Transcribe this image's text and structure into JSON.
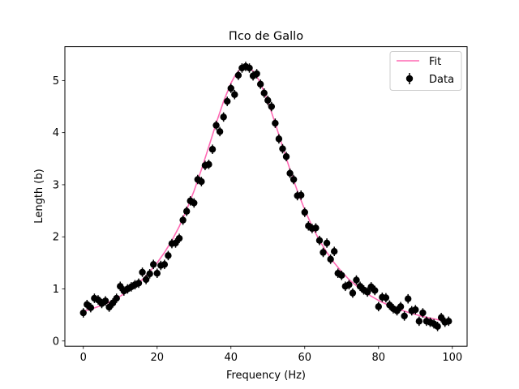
{
  "chart_data": {
    "type": "scatter",
    "title": "Пco de Gallo",
    "xlabel": "Frequency (Hz)",
    "ylabel": "Length (b)",
    "xlim": [
      -5,
      104
    ],
    "ylim": [
      -0.1,
      5.65
    ],
    "xticks": [
      0,
      20,
      40,
      60,
      80,
      100
    ],
    "xtick_labels": [
      "0",
      "20",
      "40",
      "60",
      "80",
      "100"
    ],
    "yticks": [
      0,
      1,
      2,
      3,
      4,
      5
    ],
    "ytick_labels": [
      "0",
      "1",
      "2",
      "3",
      "4",
      "5"
    ],
    "grid": false,
    "legend_position": "top-right",
    "series": [
      {
        "name": "Fit",
        "kind": "line",
        "color": "#ff69b4",
        "x": [
          0,
          2,
          4,
          6,
          8,
          10,
          12,
          14,
          16,
          18,
          20,
          22,
          24,
          26,
          28,
          30,
          32,
          34,
          36,
          38,
          40,
          41,
          42,
          43,
          44,
          45,
          46,
          47,
          48,
          50,
          52,
          54,
          56,
          58,
          60,
          62,
          64,
          66,
          68,
          70,
          72,
          74,
          76,
          78,
          80,
          82,
          84,
          86,
          88,
          90,
          92,
          94,
          96,
          98
        ],
        "y": [
          0.57,
          0.61,
          0.66,
          0.71,
          0.78,
          0.86,
          0.95,
          1.06,
          1.18,
          1.33,
          1.5,
          1.7,
          1.93,
          2.2,
          2.52,
          2.88,
          3.29,
          3.73,
          4.18,
          4.6,
          4.95,
          5.08,
          5.18,
          5.24,
          5.27,
          5.24,
          5.18,
          5.08,
          4.95,
          4.6,
          4.18,
          3.73,
          3.29,
          2.88,
          2.52,
          2.2,
          1.93,
          1.7,
          1.5,
          1.33,
          1.18,
          1.06,
          0.95,
          0.86,
          0.78,
          0.71,
          0.65,
          0.6,
          0.55,
          0.51,
          0.47,
          0.44,
          0.41,
          0.38
        ]
      },
      {
        "name": "Data",
        "kind": "errorbar",
        "color": "#000000",
        "x": [
          0,
          1,
          2,
          3,
          4,
          5,
          6,
          7,
          8,
          9,
          10,
          11,
          12,
          13,
          14,
          15,
          16,
          17,
          18,
          19,
          20,
          21,
          22,
          23,
          24,
          25,
          26,
          27,
          28,
          29,
          30,
          31,
          32,
          33,
          34,
          35,
          36,
          37,
          38,
          39,
          40,
          41,
          42,
          43,
          44,
          45,
          46,
          47,
          48,
          49,
          50,
          51,
          52,
          53,
          54,
          55,
          56,
          57,
          58,
          59,
          60,
          61,
          62,
          63,
          64,
          65,
          66,
          67,
          68,
          69,
          70,
          71,
          72,
          73,
          74,
          75,
          76,
          77,
          78,
          79,
          80,
          81,
          82,
          83,
          84,
          85,
          86,
          87,
          88,
          89,
          90,
          91,
          92,
          93,
          94,
          95,
          96,
          97,
          98,
          99
        ],
        "y": [
          0.54,
          0.7,
          0.64,
          0.82,
          0.79,
          0.72,
          0.77,
          0.65,
          0.73,
          0.82,
          1.05,
          0.96,
          1.0,
          1.04,
          1.08,
          1.11,
          1.32,
          1.18,
          1.29,
          1.47,
          1.3,
          1.45,
          1.47,
          1.64,
          1.87,
          1.88,
          1.97,
          2.32,
          2.49,
          2.69,
          2.65,
          3.1,
          3.06,
          3.37,
          3.39,
          3.68,
          4.14,
          4.02,
          4.3,
          4.6,
          4.85,
          4.73,
          5.1,
          5.24,
          5.27,
          5.24,
          5.09,
          5.13,
          4.93,
          4.76,
          4.62,
          4.5,
          4.18,
          3.88,
          3.69,
          3.54,
          3.22,
          3.1,
          2.79,
          2.8,
          2.47,
          2.21,
          2.16,
          2.17,
          1.93,
          1.7,
          1.88,
          1.57,
          1.72,
          1.3,
          1.26,
          1.05,
          1.08,
          0.92,
          1.17,
          1.05,
          0.98,
          0.94,
          1.04,
          0.97,
          0.66,
          0.84,
          0.83,
          0.69,
          0.62,
          0.58,
          0.66,
          0.48,
          0.81,
          0.58,
          0.6,
          0.38,
          0.54,
          0.38,
          0.36,
          0.33,
          0.28,
          0.45,
          0.36,
          0.38
        ],
        "yerr": 0.09
      }
    ]
  }
}
